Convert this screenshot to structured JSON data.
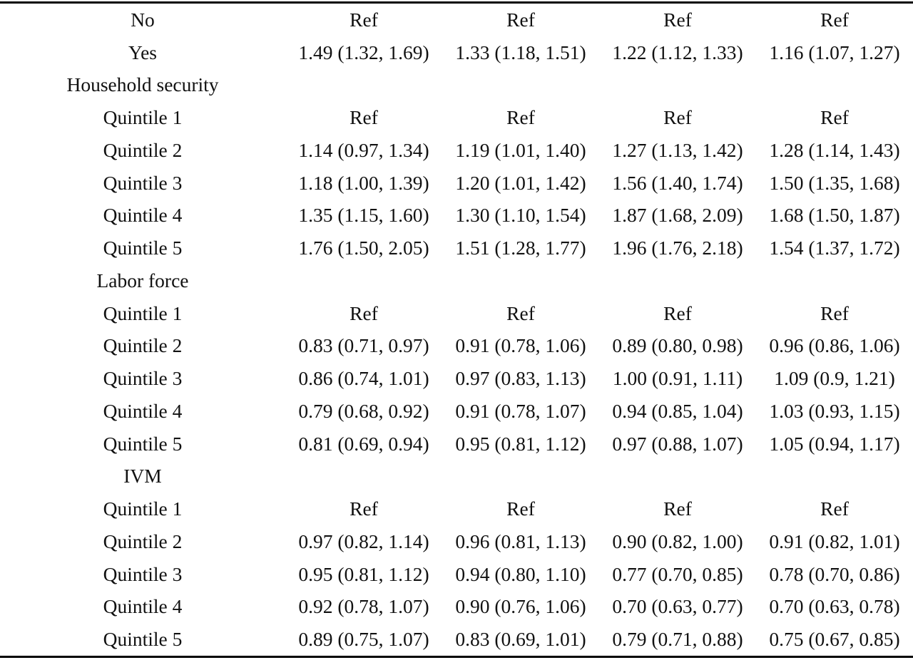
{
  "table": {
    "rows": [
      [
        "No",
        "Ref",
        "Ref",
        "Ref",
        "Ref"
      ],
      [
        "Yes",
        "1.49 (1.32, 1.69)",
        "1.33 (1.18, 1.51)",
        "1.22 (1.12, 1.33)",
        "1.16 (1.07, 1.27)"
      ],
      [
        "Household security"
      ],
      [
        "Quintile 1",
        "Ref",
        "Ref",
        "Ref",
        "Ref"
      ],
      [
        "Quintile 2",
        "1.14 (0.97, 1.34)",
        "1.19 (1.01, 1.40)",
        "1.27 (1.13, 1.42)",
        "1.28 (1.14, 1.43)"
      ],
      [
        "Quintile 3",
        "1.18 (1.00, 1.39)",
        "1.20 (1.01, 1.42)",
        "1.56 (1.40, 1.74)",
        "1.50 (1.35, 1.68)"
      ],
      [
        "Quintile 4",
        "1.35 (1.15, 1.60)",
        "1.30 (1.10, 1.54)",
        "1.87 (1.68, 2.09)",
        "1.68 (1.50, 1.87)"
      ],
      [
        "Quintile 5",
        "1.76 (1.50, 2.05)",
        "1.51 (1.28, 1.77)",
        "1.96 (1.76, 2.18)",
        "1.54 (1.37, 1.72)"
      ],
      [
        "Labor force"
      ],
      [
        "Quintile 1",
        "Ref",
        "Ref",
        "Ref",
        "Ref"
      ],
      [
        "Quintile 2",
        "0.83 (0.71, 0.97)",
        "0.91 (0.78, 1.06)",
        "0.89 (0.80, 0.98)",
        "0.96 (0.86, 1.06)"
      ],
      [
        "Quintile 3",
        "0.86 (0.74, 1.01)",
        "0.97 (0.83, 1.13)",
        "1.00 (0.91, 1.11)",
        "1.09 (0.9, 1.21)"
      ],
      [
        "Quintile 4",
        "0.79 (0.68, 0.92)",
        "0.91 (0.78, 1.07)",
        "0.94 (0.85, 1.04)",
        "1.03 (0.93, 1.15)"
      ],
      [
        "Quintile 5",
        "0.81 (0.69, 0.94)",
        "0.95 (0.81, 1.12)",
        "0.97 (0.88, 1.07)",
        "1.05 (0.94, 1.17)"
      ],
      [
        "IVM"
      ],
      [
        "Quintile 1",
        "Ref",
        "Ref",
        "Ref",
        "Ref"
      ],
      [
        "Quintile 2",
        "0.97 (0.82, 1.14)",
        "0.96 (0.81, 1.13)",
        "0.90 (0.82, 1.00)",
        "0.91 (0.82, 1.01)"
      ],
      [
        "Quintile 3",
        "0.95 (0.81, 1.12)",
        "0.94 (0.80, 1.10)",
        "0.77 (0.70, 0.85)",
        "0.78 (0.70, 0.86)"
      ],
      [
        "Quintile 4",
        "0.92 (0.78, 1.07)",
        "0.90 (0.76, 1.06)",
        "0.70 (0.63, 0.77)",
        "0.70 (0.63, 0.78)"
      ],
      [
        "Quintile 5",
        "0.89 (0.75, 1.07)",
        "0.83 (0.69, 1.01)",
        "0.79 (0.71, 0.88)",
        "0.75 (0.67, 0.85)"
      ]
    ]
  }
}
